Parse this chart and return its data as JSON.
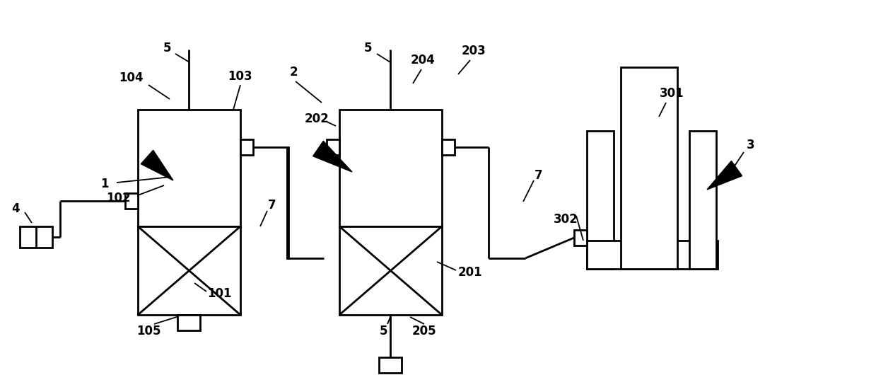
{
  "bg_color": "#ffffff",
  "line_color": "#000000",
  "lw": 2.0,
  "fig_width": 12.39,
  "fig_height": 5.3
}
